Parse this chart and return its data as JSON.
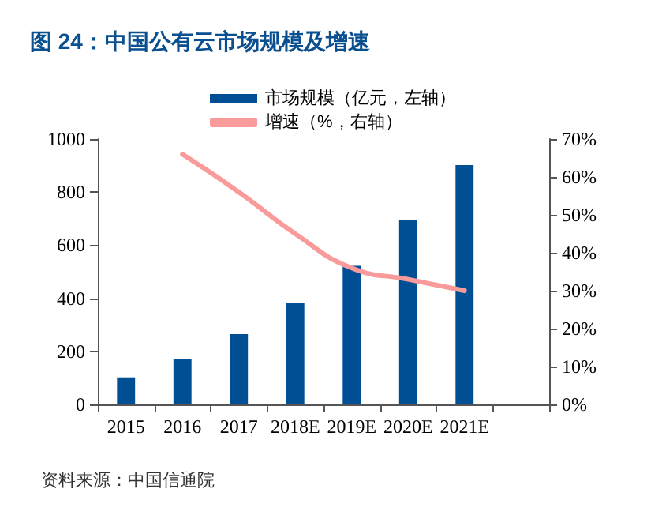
{
  "chart_data": {
    "type": "bar",
    "title": "图 24：中国公有云市场规模及增速",
    "categories": [
      "2015",
      "2016",
      "2017",
      "2018E",
      "2019E",
      "2020E",
      "2021E",
      null
    ],
    "series": [
      {
        "name": "市场规模（亿元，左轴）",
        "color": "#004f95",
        "values": [
          102,
          170,
          265,
          383,
          522,
          695,
          902,
          null
        ]
      },
      {
        "name": "增速（%，右轴）",
        "type": "line",
        "axis": "y2",
        "color": "#fa9b9b",
        "marker": "none",
        "line_style": "solid",
        "values": [
          null,
          66,
          56,
          45,
          36,
          33,
          30,
          null
        ]
      }
    ],
    "ylim": [
      0,
      1000
    ],
    "yticks": [
      0,
      200,
      400,
      600,
      800,
      1000
    ],
    "y2lim": [
      0,
      70
    ],
    "y2ticks": [
      {
        "value": 0,
        "label": "0%"
      },
      {
        "value": 10,
        "label": "10%"
      },
      {
        "value": 20,
        "label": "20%"
      },
      {
        "value": 30,
        "label": "30%"
      },
      {
        "value": 40,
        "label": "40%"
      },
      {
        "value": 50,
        "label": "50%"
      },
      {
        "value": 60,
        "label": "60%"
      },
      {
        "value": 70,
        "label": "70%"
      }
    ],
    "grid": false,
    "legend": "top",
    "annotations": [
      "资料来源：中国信通院"
    ]
  }
}
